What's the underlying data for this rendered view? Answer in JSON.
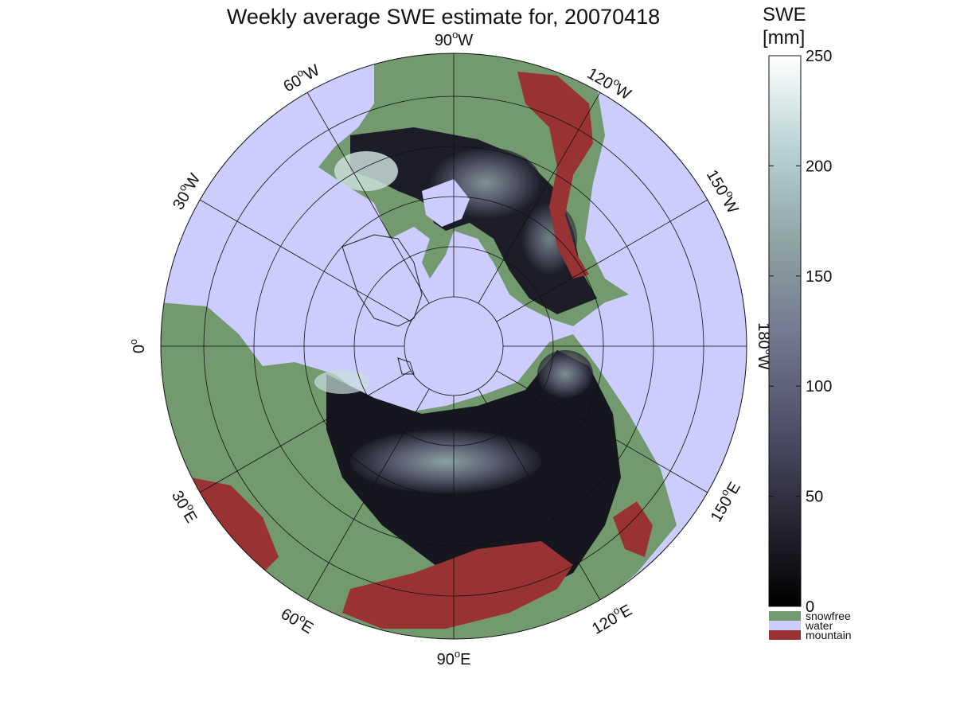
{
  "title": "Weekly average SWE estimate for, 20070418",
  "map": {
    "meridian_labels": [
      {
        "deg": "90",
        "dir": "W"
      },
      {
        "deg": "120",
        "dir": "W"
      },
      {
        "deg": "150",
        "dir": "W"
      },
      {
        "deg": "180",
        "dir": "W"
      },
      {
        "deg": "150",
        "dir": "E"
      },
      {
        "deg": "120",
        "dir": "E"
      },
      {
        "deg": "90",
        "dir": "E"
      },
      {
        "deg": "60",
        "dir": "E"
      },
      {
        "deg": "30",
        "dir": "E"
      },
      {
        "deg": "0",
        "dir": ""
      },
      {
        "deg": "30",
        "dir": "W"
      },
      {
        "deg": "60",
        "dir": "W"
      }
    ]
  },
  "colorbar": {
    "title_line1": "SWE",
    "title_line2": "[mm]",
    "ticks": [
      "0",
      "50",
      "100",
      "150",
      "200",
      "250"
    ],
    "tick_values": [
      0,
      50,
      100,
      150,
      200,
      250
    ],
    "range": [
      0,
      250
    ],
    "gradient": [
      "#000000",
      "#2a2a38",
      "#53536e",
      "#747a90",
      "#8fa3a3",
      "#b8d2d2",
      "#ffffff"
    ],
    "categories": [
      {
        "label": "snowfree",
        "color": "#739a6e"
      },
      {
        "label": "water",
        "color": "#ccccff"
      },
      {
        "label": "mountain",
        "color": "#993333"
      }
    ]
  }
}
